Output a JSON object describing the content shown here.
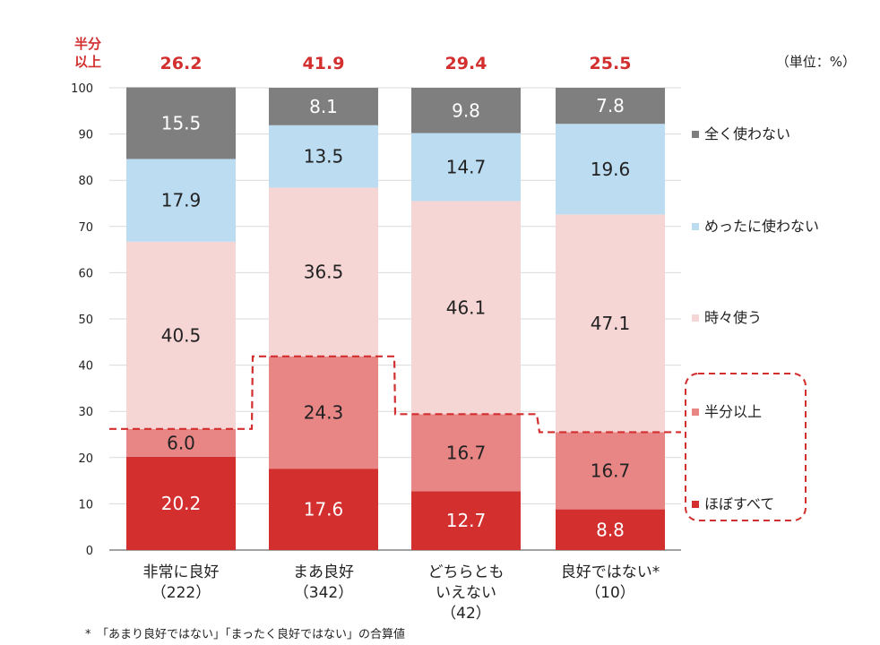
{
  "chart_data": {
    "type": "bar",
    "stacked": true,
    "unit": "（単位：%）",
    "ylim": [
      0,
      100
    ],
    "yticks": [
      0,
      10,
      20,
      30,
      40,
      50,
      60,
      70,
      80,
      90,
      100
    ],
    "categories": [
      {
        "lines": [
          "非常に良好",
          "（222）"
        ]
      },
      {
        "lines": [
          "まあ良好",
          "（342）"
        ]
      },
      {
        "lines": [
          "どちらとも",
          "いえない",
          "（42）"
        ]
      },
      {
        "lines": [
          "良好ではない*",
          "（10）"
        ]
      }
    ],
    "series": [
      {
        "name": "ほぼすべて",
        "color": "#d32f2f",
        "values": [
          20.2,
          17.6,
          12.7,
          8.8
        ],
        "label_color": "#ffffff"
      },
      {
        "name": "半分以上",
        "color": "#e88585",
        "values": [
          6.0,
          24.3,
          16.7,
          16.7
        ],
        "label_color": "#222222"
      },
      {
        "name": "時々使う",
        "color": "#f6d5d5",
        "values": [
          40.5,
          36.5,
          46.1,
          47.1
        ],
        "label_color": "#222222"
      },
      {
        "name": "めったに使わない",
        "color": "#bcdcf2",
        "values": [
          17.9,
          13.5,
          14.7,
          19.6
        ],
        "label_color": "#222222"
      },
      {
        "name": "全く使わない",
        "color": "#7f7f7f",
        "values": [
          15.5,
          8.1,
          9.8,
          7.8
        ],
        "label_color": "#ffffff"
      }
    ],
    "half_or_more": {
      "title_lines": [
        "半分",
        "以上"
      ],
      "values": [
        "26.2",
        "41.9",
        "29.4",
        "25.5"
      ],
      "color": "#d32f2f"
    },
    "legend_placement": "right",
    "footnote": "*　「あまり良好ではない」「まったく良好ではない」の合算値"
  }
}
